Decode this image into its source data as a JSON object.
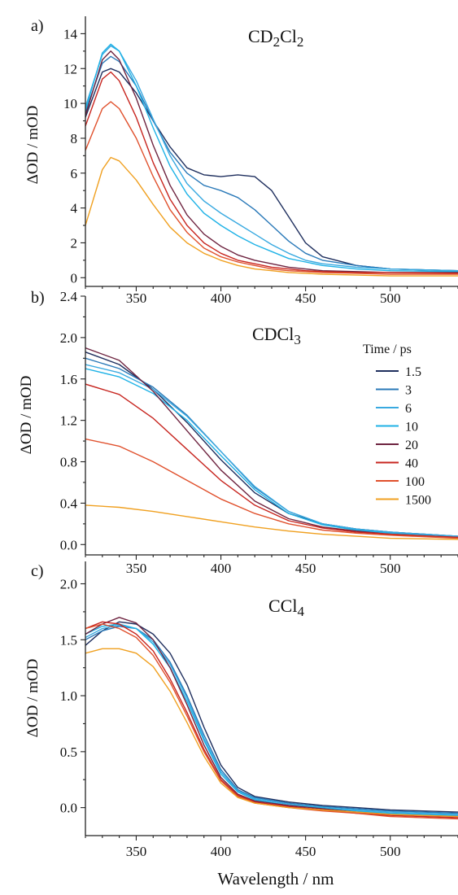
{
  "figure": {
    "xlabel": "Wavelength / nm"
  },
  "legend": {
    "title": "Time / ps",
    "entries": [
      {
        "label": "1.5",
        "color": "#1f2f5e"
      },
      {
        "label": "3",
        "color": "#2a79b8"
      },
      {
        "label": "6",
        "color": "#39a9e0"
      },
      {
        "label": "10",
        "color": "#1fb2e6"
      },
      {
        "label": "20",
        "color": "#6e2440"
      },
      {
        "label": "40",
        "color": "#c7251f"
      },
      {
        "label": "100",
        "color": "#e0502c"
      },
      {
        "label": "1500",
        "color": "#f0a020"
      }
    ]
  },
  "chart_data": [
    {
      "type": "line",
      "panel": "a)",
      "title": "CD2Cl2",
      "ylabel": "ΔOD / mOD",
      "xlim": [
        320,
        540
      ],
      "ylim": [
        -0.5,
        15
      ],
      "x_ticks": [
        350,
        400,
        450,
        500
      ],
      "y_ticks": [
        0,
        2,
        4,
        6,
        8,
        10,
        12,
        14
      ],
      "series": [
        {
          "name": "1.5",
          "color": "#1f2f5e",
          "x": [
            320,
            330,
            335,
            340,
            350,
            360,
            370,
            380,
            390,
            400,
            410,
            420,
            430,
            440,
            450,
            460,
            480,
            500,
            540
          ],
          "y": [
            9.2,
            11.8,
            12.0,
            11.8,
            10.6,
            9.0,
            7.5,
            6.3,
            5.9,
            5.8,
            5.9,
            5.8,
            5.0,
            3.5,
            2.0,
            1.2,
            0.7,
            0.5,
            0.4
          ]
        },
        {
          "name": "3",
          "color": "#2a79b8",
          "x": [
            320,
            330,
            335,
            340,
            350,
            360,
            370,
            380,
            390,
            400,
            410,
            420,
            430,
            440,
            450,
            460,
            480,
            500,
            540
          ],
          "y": [
            9.5,
            12.3,
            12.7,
            12.4,
            11.0,
            9.0,
            7.2,
            6.0,
            5.3,
            5.0,
            4.6,
            3.9,
            3.0,
            2.1,
            1.4,
            1.0,
            0.7,
            0.5,
            0.4
          ]
        },
        {
          "name": "6",
          "color": "#39a9e0",
          "x": [
            320,
            330,
            335,
            340,
            350,
            360,
            370,
            380,
            390,
            400,
            410,
            420,
            430,
            440,
            450,
            460,
            480,
            500,
            540
          ],
          "y": [
            9.8,
            12.8,
            13.3,
            13.0,
            11.3,
            9.1,
            7.0,
            5.4,
            4.4,
            3.7,
            3.1,
            2.5,
            1.9,
            1.4,
            1.0,
            0.8,
            0.6,
            0.5,
            0.4
          ]
        },
        {
          "name": "10",
          "color": "#1fb2e6",
          "x": [
            320,
            330,
            335,
            340,
            350,
            360,
            370,
            380,
            390,
            400,
            410,
            420,
            430,
            440,
            450,
            460,
            480,
            500,
            540
          ],
          "y": [
            9.6,
            12.9,
            13.4,
            13.0,
            11.0,
            8.6,
            6.4,
            4.8,
            3.7,
            3.0,
            2.4,
            1.9,
            1.5,
            1.1,
            0.9,
            0.7,
            0.5,
            0.4,
            0.35
          ]
        },
        {
          "name": "20",
          "color": "#6e2440",
          "x": [
            320,
            330,
            335,
            340,
            350,
            360,
            370,
            380,
            390,
            400,
            410,
            420,
            430,
            440,
            450,
            460,
            480,
            500,
            540
          ],
          "y": [
            9.3,
            12.5,
            13.0,
            12.5,
            10.3,
            7.6,
            5.3,
            3.6,
            2.5,
            1.8,
            1.3,
            1.0,
            0.8,
            0.6,
            0.5,
            0.4,
            0.35,
            0.3,
            0.3
          ]
        },
        {
          "name": "40",
          "color": "#c7251f",
          "x": [
            320,
            330,
            335,
            340,
            350,
            360,
            370,
            380,
            390,
            400,
            410,
            420,
            430,
            440,
            450,
            460,
            480,
            500,
            540
          ],
          "y": [
            8.7,
            11.4,
            11.8,
            11.3,
            9.2,
            6.6,
            4.5,
            3.0,
            2.0,
            1.4,
            1.0,
            0.8,
            0.6,
            0.5,
            0.4,
            0.35,
            0.3,
            0.3,
            0.25
          ]
        },
        {
          "name": "100",
          "color": "#e0502c",
          "x": [
            320,
            330,
            335,
            340,
            350,
            360,
            370,
            380,
            390,
            400,
            410,
            420,
            430,
            440,
            450,
            460,
            480,
            500,
            540
          ],
          "y": [
            7.3,
            9.7,
            10.1,
            9.7,
            8.0,
            5.8,
            3.9,
            2.6,
            1.7,
            1.2,
            0.9,
            0.7,
            0.5,
            0.4,
            0.35,
            0.3,
            0.25,
            0.2,
            0.2
          ]
        },
        {
          "name": "1500",
          "color": "#f0a020",
          "x": [
            320,
            330,
            335,
            340,
            350,
            360,
            370,
            380,
            390,
            400,
            410,
            420,
            430,
            440,
            450,
            460,
            480,
            500,
            540
          ],
          "y": [
            3.0,
            6.2,
            6.9,
            6.7,
            5.6,
            4.2,
            2.9,
            2.0,
            1.4,
            1.0,
            0.7,
            0.5,
            0.4,
            0.3,
            0.25,
            0.2,
            0.15,
            0.1,
            0.1
          ]
        }
      ]
    },
    {
      "type": "line",
      "panel": "b)",
      "title": "CDCl3",
      "ylabel": "ΔOD / mOD",
      "xlim": [
        320,
        540
      ],
      "ylim": [
        -0.1,
        2.4
      ],
      "x_ticks": [
        350,
        400,
        450,
        500
      ],
      "y_ticks": [
        0.0,
        0.4,
        0.8,
        1.2,
        1.6,
        2.0,
        2.4
      ],
      "series": [
        {
          "name": "1.5",
          "color": "#1f2f5e",
          "x": [
            320,
            340,
            360,
            380,
            400,
            420,
            440,
            460,
            480,
            500,
            540
          ],
          "y": [
            1.86,
            1.74,
            1.5,
            1.18,
            0.82,
            0.5,
            0.3,
            0.2,
            0.15,
            0.12,
            0.08
          ]
        },
        {
          "name": "3",
          "color": "#2a79b8",
          "x": [
            320,
            340,
            360,
            380,
            400,
            420,
            440,
            460,
            480,
            500,
            540
          ],
          "y": [
            1.8,
            1.7,
            1.52,
            1.25,
            0.9,
            0.55,
            0.32,
            0.2,
            0.15,
            0.12,
            0.08
          ]
        },
        {
          "name": "6",
          "color": "#39a9e0",
          "x": [
            320,
            340,
            360,
            380,
            400,
            420,
            440,
            460,
            480,
            500,
            540
          ],
          "y": [
            1.74,
            1.66,
            1.5,
            1.24,
            0.9,
            0.56,
            0.32,
            0.2,
            0.15,
            0.12,
            0.08
          ]
        },
        {
          "name": "10",
          "color": "#1fb2e6",
          "x": [
            320,
            340,
            360,
            380,
            400,
            420,
            440,
            460,
            480,
            500,
            540
          ],
          "y": [
            1.7,
            1.62,
            1.46,
            1.2,
            0.86,
            0.53,
            0.3,
            0.19,
            0.14,
            0.11,
            0.07
          ]
        },
        {
          "name": "20",
          "color": "#6e2440",
          "x": [
            320,
            340,
            360,
            380,
            400,
            420,
            440,
            460,
            480,
            500,
            540
          ],
          "y": [
            1.9,
            1.78,
            1.48,
            1.1,
            0.72,
            0.42,
            0.25,
            0.17,
            0.13,
            0.1,
            0.07
          ]
        },
        {
          "name": "40",
          "color": "#c7251f",
          "x": [
            320,
            340,
            360,
            380,
            400,
            420,
            440,
            460,
            480,
            500,
            540
          ],
          "y": [
            1.55,
            1.45,
            1.22,
            0.92,
            0.62,
            0.38,
            0.23,
            0.16,
            0.12,
            0.1,
            0.07
          ]
        },
        {
          "name": "100",
          "color": "#e0502c",
          "x": [
            320,
            340,
            360,
            380,
            400,
            420,
            440,
            460,
            480,
            500,
            540
          ],
          "y": [
            1.02,
            0.95,
            0.8,
            0.62,
            0.44,
            0.3,
            0.2,
            0.14,
            0.11,
            0.09,
            0.06
          ]
        },
        {
          "name": "1500",
          "color": "#f0a020",
          "x": [
            320,
            340,
            360,
            380,
            400,
            420,
            440,
            460,
            480,
            500,
            540
          ],
          "y": [
            0.38,
            0.36,
            0.32,
            0.27,
            0.22,
            0.17,
            0.13,
            0.1,
            0.08,
            0.06,
            0.05
          ]
        }
      ]
    },
    {
      "type": "line",
      "panel": "c)",
      "title": "CCl4",
      "ylabel": "ΔOD / mOD",
      "xlim": [
        320,
        540
      ],
      "ylim": [
        -0.25,
        2.2
      ],
      "x_ticks": [
        350,
        400,
        450,
        500
      ],
      "y_ticks": [
        0.0,
        0.5,
        1.0,
        1.5,
        2.0
      ],
      "series": [
        {
          "name": "1.5",
          "color": "#1f2f5e",
          "x": [
            320,
            330,
            340,
            350,
            360,
            370,
            380,
            390,
            400,
            410,
            420,
            440,
            460,
            480,
            500,
            540
          ],
          "y": [
            1.45,
            1.58,
            1.66,
            1.64,
            1.55,
            1.38,
            1.1,
            0.72,
            0.38,
            0.18,
            0.1,
            0.05,
            0.02,
            0.0,
            -0.02,
            -0.04
          ]
        },
        {
          "name": "3",
          "color": "#2a79b8",
          "x": [
            320,
            330,
            340,
            350,
            360,
            370,
            380,
            390,
            400,
            410,
            420,
            440,
            460,
            480,
            500,
            540
          ],
          "y": [
            1.5,
            1.58,
            1.62,
            1.6,
            1.5,
            1.3,
            1.0,
            0.65,
            0.34,
            0.16,
            0.09,
            0.04,
            0.01,
            -0.01,
            -0.03,
            -0.05
          ]
        },
        {
          "name": "6",
          "color": "#39a9e0",
          "x": [
            320,
            330,
            340,
            350,
            360,
            370,
            380,
            390,
            400,
            410,
            420,
            440,
            460,
            480,
            500,
            540
          ],
          "y": [
            1.52,
            1.6,
            1.63,
            1.6,
            1.48,
            1.28,
            0.98,
            0.62,
            0.32,
            0.15,
            0.08,
            0.03,
            0.0,
            -0.02,
            -0.04,
            -0.06
          ]
        },
        {
          "name": "10",
          "color": "#1fb2e6",
          "x": [
            320,
            330,
            340,
            350,
            360,
            370,
            380,
            390,
            400,
            410,
            420,
            440,
            460,
            480,
            500,
            540
          ],
          "y": [
            1.55,
            1.62,
            1.64,
            1.6,
            1.46,
            1.25,
            0.95,
            0.6,
            0.3,
            0.14,
            0.07,
            0.02,
            0.0,
            -0.03,
            -0.05,
            -0.07
          ]
        },
        {
          "name": "20",
          "color": "#6e2440",
          "x": [
            320,
            330,
            340,
            350,
            360,
            370,
            380,
            390,
            400,
            410,
            420,
            440,
            460,
            480,
            500,
            540
          ],
          "y": [
            1.55,
            1.64,
            1.7,
            1.65,
            1.5,
            1.25,
            0.92,
            0.56,
            0.27,
            0.12,
            0.06,
            0.02,
            -0.01,
            -0.04,
            -0.06,
            -0.08
          ]
        },
        {
          "name": "40",
          "color": "#c7251f",
          "x": [
            320,
            330,
            340,
            350,
            360,
            370,
            380,
            390,
            400,
            410,
            420,
            440,
            460,
            480,
            500,
            540
          ],
          "y": [
            1.6,
            1.66,
            1.64,
            1.55,
            1.4,
            1.15,
            0.85,
            0.52,
            0.25,
            0.11,
            0.05,
            0.01,
            -0.02,
            -0.05,
            -0.07,
            -0.09
          ]
        },
        {
          "name": "100",
          "color": "#e0502c",
          "x": [
            320,
            330,
            340,
            350,
            360,
            370,
            380,
            390,
            400,
            410,
            420,
            440,
            460,
            480,
            500,
            540
          ],
          "y": [
            1.6,
            1.64,
            1.6,
            1.52,
            1.36,
            1.12,
            0.82,
            0.5,
            0.24,
            0.1,
            0.04,
            0.0,
            -0.03,
            -0.05,
            -0.08,
            -0.1
          ]
        },
        {
          "name": "1500",
          "color": "#f0a020",
          "x": [
            320,
            330,
            340,
            350,
            360,
            370,
            380,
            390,
            400,
            410,
            420,
            440,
            460,
            480,
            500,
            540
          ],
          "y": [
            1.38,
            1.42,
            1.42,
            1.38,
            1.26,
            1.04,
            0.76,
            0.46,
            0.22,
            0.09,
            0.04,
            0.0,
            -0.02,
            -0.04,
            -0.06,
            -0.08
          ]
        }
      ]
    }
  ]
}
